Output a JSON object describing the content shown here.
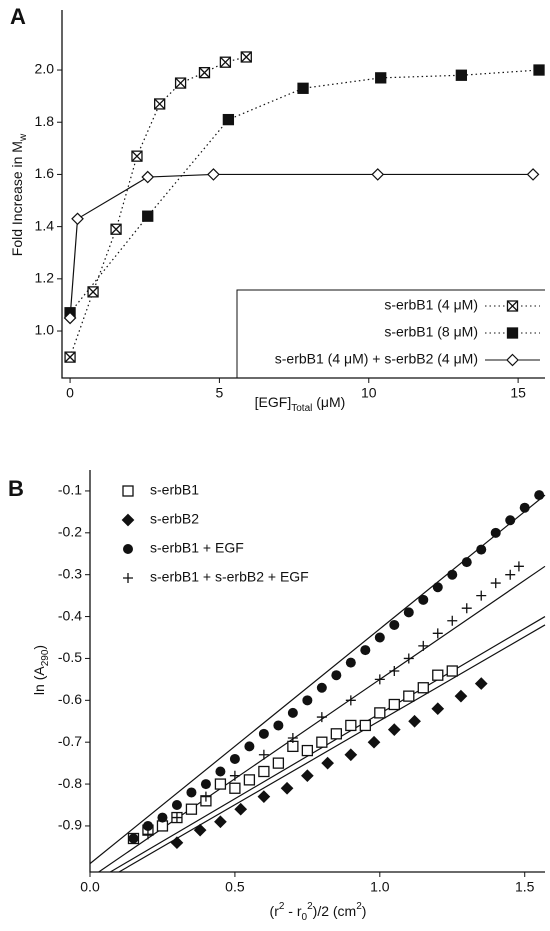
{
  "chart_data": [
    {
      "type": "line",
      "panel_label": "A",
      "xlabel": [
        {
          "text": "[EGF]"
        },
        {
          "text": "Total",
          "script": "sub"
        },
        {
          "text": " (μM)"
        }
      ],
      "ylabel": [
        {
          "text": "Fold Increase in M"
        },
        {
          "text": "w",
          "script": "sub"
        }
      ],
      "xlim": [
        -0.27,
        15.9
      ],
      "xticks": [
        0,
        5,
        10,
        15
      ],
      "ylim": [
        0.82,
        2.23
      ],
      "yticks": [
        {
          "value": 1.0,
          "label": "1.0"
        },
        1.2,
        1.4,
        1.6,
        1.8,
        {
          "value": 2.0,
          "label": "2.0"
        }
      ],
      "legend": "lower right",
      "series": [
        {
          "name": "s-erbB1 (4 μM)",
          "color": "#111",
          "marker": "square-x",
          "line": "dotted",
          "x": [
            0,
            0.77,
            1.54,
            2.24,
            3.0,
            3.7,
            4.5,
            5.2,
            5.9
          ],
          "values": [
            0.9,
            1.15,
            1.39,
            1.67,
            1.87,
            1.95,
            1.99,
            2.03,
            2.05
          ]
        },
        {
          "name": "s-erbB1 (8 μM)",
          "color": "#111",
          "marker": "square-filled",
          "line": "dotted",
          "x": [
            0,
            2.6,
            5.3,
            7.8,
            10.4,
            13.1,
            15.7
          ],
          "values": [
            1.07,
            1.44,
            1.81,
            1.93,
            1.97,
            1.98,
            2.0
          ]
        },
        {
          "name": "s-erbB1 (4 μM) + s-erbB2 (4 μM)",
          "color": "#111",
          "marker": "diamond-open",
          "line": "solid",
          "x": [
            0,
            0.25,
            2.6,
            4.8,
            10.3,
            15.5
          ],
          "values": [
            1.05,
            1.43,
            1.59,
            1.6,
            1.6,
            1.6
          ]
        }
      ]
    },
    {
      "type": "scatter",
      "panel_label": "B",
      "xlabel": [
        {
          "text": "(r"
        },
        {
          "text": "2",
          "script": "sup"
        },
        {
          "text": " - r"
        },
        {
          "text": "0",
          "script": "sub"
        },
        {
          "text": "2",
          "script": "sup"
        },
        {
          "text": ")/2  (cm"
        },
        {
          "text": "2",
          "script": "sup"
        },
        {
          "text": ")"
        }
      ],
      "ylabel": [
        {
          "text": "ln (A"
        },
        {
          "text": "290",
          "script": "sub"
        },
        {
          "text": ")"
        }
      ],
      "xlim": [
        0,
        1.57
      ],
      "xticks": [
        {
          "value": 0,
          "label": "0.0"
        },
        0.5,
        {
          "value": 1,
          "label": "1.0"
        },
        1.5
      ],
      "ylim": [
        -1.01,
        -0.05
      ],
      "yticks": [
        -0.1,
        -0.2,
        -0.3,
        -0.4,
        -0.5,
        -0.6,
        -0.7,
        -0.8,
        -0.9
      ],
      "legend": "upper left",
      "series": [
        {
          "name": "s-erbB1",
          "color": "#111",
          "marker": "square-open",
          "x": [
            0.15,
            0.2,
            0.25,
            0.3,
            0.35,
            0.4,
            0.45,
            0.5,
            0.55,
            0.6,
            0.65,
            0.7,
            0.75,
            0.8,
            0.85,
            0.9,
            0.95,
            1.0,
            1.05,
            1.1,
            1.15,
            1.2,
            1.25
          ],
          "values": [
            -0.93,
            -0.91,
            -0.9,
            -0.88,
            -0.86,
            -0.84,
            -0.8,
            -0.81,
            -0.79,
            -0.77,
            -0.75,
            -0.71,
            -0.72,
            -0.7,
            -0.68,
            -0.66,
            -0.66,
            -0.63,
            -0.61,
            -0.59,
            -0.57,
            -0.54,
            -0.53
          ]
        },
        {
          "name": "s-erbB2",
          "color": "#111",
          "marker": "diamond-filled",
          "x": [
            0.3,
            0.38,
            0.45,
            0.52,
            0.6,
            0.68,
            0.75,
            0.82,
            0.9,
            0.98,
            1.05,
            1.12,
            1.2,
            1.28,
            1.35
          ],
          "values": [
            -0.94,
            -0.91,
            -0.89,
            -0.86,
            -0.83,
            -0.81,
            -0.78,
            -0.75,
            -0.73,
            -0.7,
            -0.67,
            -0.65,
            -0.62,
            -0.59,
            -0.56
          ]
        },
        {
          "name": "s-erbB1 + EGF",
          "color": "#111",
          "marker": "circle-filled",
          "x": [
            0.15,
            0.2,
            0.25,
            0.3,
            0.35,
            0.4,
            0.45,
            0.5,
            0.55,
            0.6,
            0.65,
            0.7,
            0.75,
            0.8,
            0.85,
            0.9,
            0.95,
            1.0,
            1.05,
            1.1,
            1.15,
            1.2,
            1.25,
            1.3,
            1.35,
            1.4,
            1.45,
            1.5,
            1.55
          ],
          "values": [
            -0.93,
            -0.9,
            -0.88,
            -0.85,
            -0.82,
            -0.8,
            -0.77,
            -0.74,
            -0.71,
            -0.68,
            -0.66,
            -0.63,
            -0.6,
            -0.57,
            -0.54,
            -0.51,
            -0.48,
            -0.45,
            -0.42,
            -0.39,
            -0.36,
            -0.33,
            -0.3,
            -0.27,
            -0.24,
            -0.2,
            -0.17,
            -0.14,
            -0.11
          ]
        },
        {
          "name": "s-erbB1 + s-erbB2 + EGF",
          "color": "#111",
          "marker": "plus",
          "x": [
            0.2,
            0.3,
            0.4,
            0.5,
            0.6,
            0.7,
            0.8,
            0.9,
            1.0,
            1.05,
            1.1,
            1.15,
            1.2,
            1.25,
            1.3,
            1.35,
            1.4,
            1.45,
            1.48
          ],
          "values": [
            -0.92,
            -0.88,
            -0.83,
            -0.78,
            -0.73,
            -0.69,
            -0.64,
            -0.6,
            -0.55,
            -0.53,
            -0.5,
            -0.47,
            -0.44,
            -0.41,
            -0.38,
            -0.35,
            -0.32,
            -0.3,
            -0.28
          ]
        }
      ],
      "fits": [
        {
          "color": "#111",
          "x": [
            0,
            1.57
          ],
          "values": [
            -0.99,
            -0.11
          ]
        },
        {
          "color": "#111",
          "x": [
            0.03,
            1.57
          ],
          "values": [
            -1.01,
            -0.28
          ]
        },
        {
          "color": "#111",
          "x": [
            0.07,
            1.57
          ],
          "values": [
            -1.01,
            -0.4
          ]
        },
        {
          "color": "#111",
          "x": [
            0.1,
            1.57
          ],
          "values": [
            -1.01,
            -0.42
          ]
        }
      ]
    }
  ]
}
